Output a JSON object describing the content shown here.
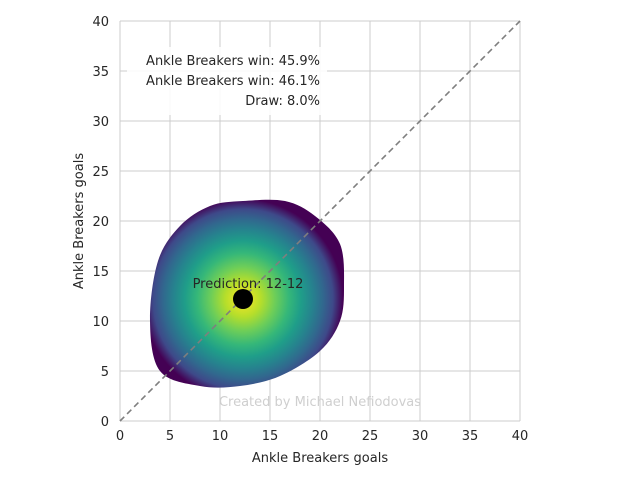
{
  "chart_data": {
    "type": "heatmap",
    "xlabel": "Ankle Breakers goals",
    "ylabel": "Ankle Breakers goals",
    "xlim": [
      0,
      40
    ],
    "ylim": [
      0,
      40
    ],
    "xticks": [
      0,
      5,
      10,
      15,
      20,
      25,
      30,
      35,
      40
    ],
    "yticks": [
      0,
      5,
      10,
      15,
      20,
      25,
      30,
      35,
      40
    ],
    "grid": true,
    "colormap": "viridis",
    "density_center": [
      12.3,
      12.2
    ],
    "density_outline": [
      [
        12.3,
        22.0
      ],
      [
        16.5,
        22.0
      ],
      [
        19.5,
        20.5
      ],
      [
        22.0,
        17.7
      ],
      [
        22.4,
        13.5
      ],
      [
        22.0,
        10.0
      ],
      [
        20.0,
        7.0
      ],
      [
        16.0,
        4.5
      ],
      [
        12.0,
        3.5
      ],
      [
        8.0,
        3.5
      ],
      [
        4.0,
        5.0
      ],
      [
        3.0,
        10.0
      ],
      [
        3.8,
        16.0
      ],
      [
        6.0,
        19.5
      ],
      [
        9.0,
        21.5
      ]
    ],
    "diagonal": {
      "from": [
        0,
        0
      ],
      "to": [
        40,
        40
      ],
      "style": "dashed",
      "color": "#7f7f7f"
    },
    "prediction_point": {
      "x": 12.3,
      "y": 12.2
    },
    "annotations": {
      "prediction": "Prediction: 12-12",
      "win_a": "Ankle Breakers win: 45.9%",
      "win_b": "Ankle Breakers win: 46.1%",
      "draw": "Draw: 8.0%"
    },
    "watermark": "Created by Michael Nefiodovas"
  }
}
